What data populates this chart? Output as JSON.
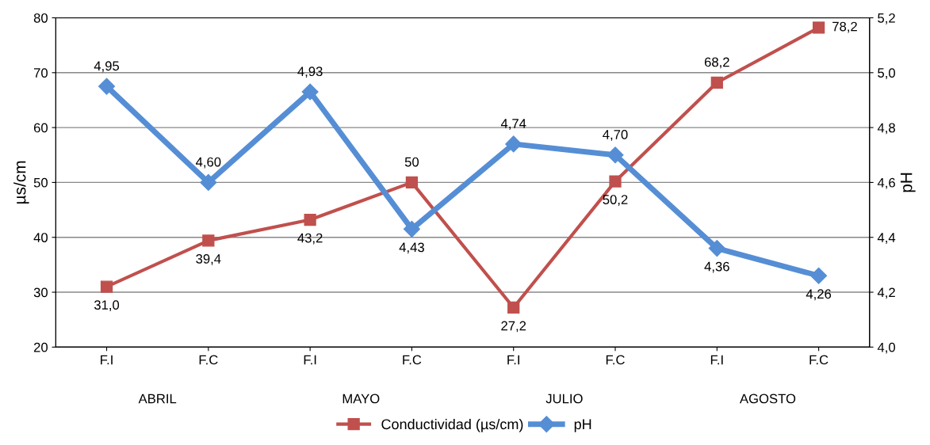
{
  "chart_data": {
    "type": "line",
    "ylabel": "µs/cm",
    "y2label": "pH",
    "categories": [
      "F.I",
      "F.C",
      "F.I",
      "F.C",
      "F.I",
      "F.C",
      "F.I",
      "F.C"
    ],
    "annotations": [
      "ABRIL",
      "MAYO",
      "JULIO",
      "AGOSTO"
    ],
    "series": [
      {
        "name": "Conductividad (µs/cm)",
        "color": "#c0504d",
        "marker": "square",
        "values": [
          31.0,
          39.4,
          43.2,
          50,
          27.2,
          50.2,
          68.2,
          78.2
        ],
        "value_labels": [
          "31,0",
          "39,4",
          "43,2",
          "50",
          "27,2",
          "50,2",
          "68,2",
          "78,2"
        ]
      },
      {
        "name": "pH",
        "color": "#558ed5",
        "marker": "diamond",
        "axis": "y2",
        "values": [
          4.95,
          4.6,
          4.93,
          4.43,
          4.74,
          4.7,
          4.36,
          4.26
        ],
        "value_labels": [
          "4,95",
          "4,60",
          "4,93",
          "4,43",
          "4,74",
          "4,70",
          "4,36",
          "4,26"
        ]
      }
    ],
    "ylim": [
      20,
      80
    ],
    "yticks": [
      20,
      30,
      40,
      50,
      60,
      70,
      80
    ],
    "y2lim": [
      4.0,
      5.2
    ],
    "y2ticks": [
      {
        "value": 4.0,
        "label": "4,0"
      },
      {
        "value": 4.2,
        "label": "4,2"
      },
      {
        "value": 4.4,
        "label": "4,4"
      },
      {
        "value": 4.6,
        "label": "4,6"
      },
      {
        "value": 4.8,
        "label": "4,8"
      },
      {
        "value": 5.0,
        "label": "5,0"
      },
      {
        "value": 5.2,
        "label": "5,2"
      }
    ],
    "grid": "y",
    "legend": "bottom"
  }
}
